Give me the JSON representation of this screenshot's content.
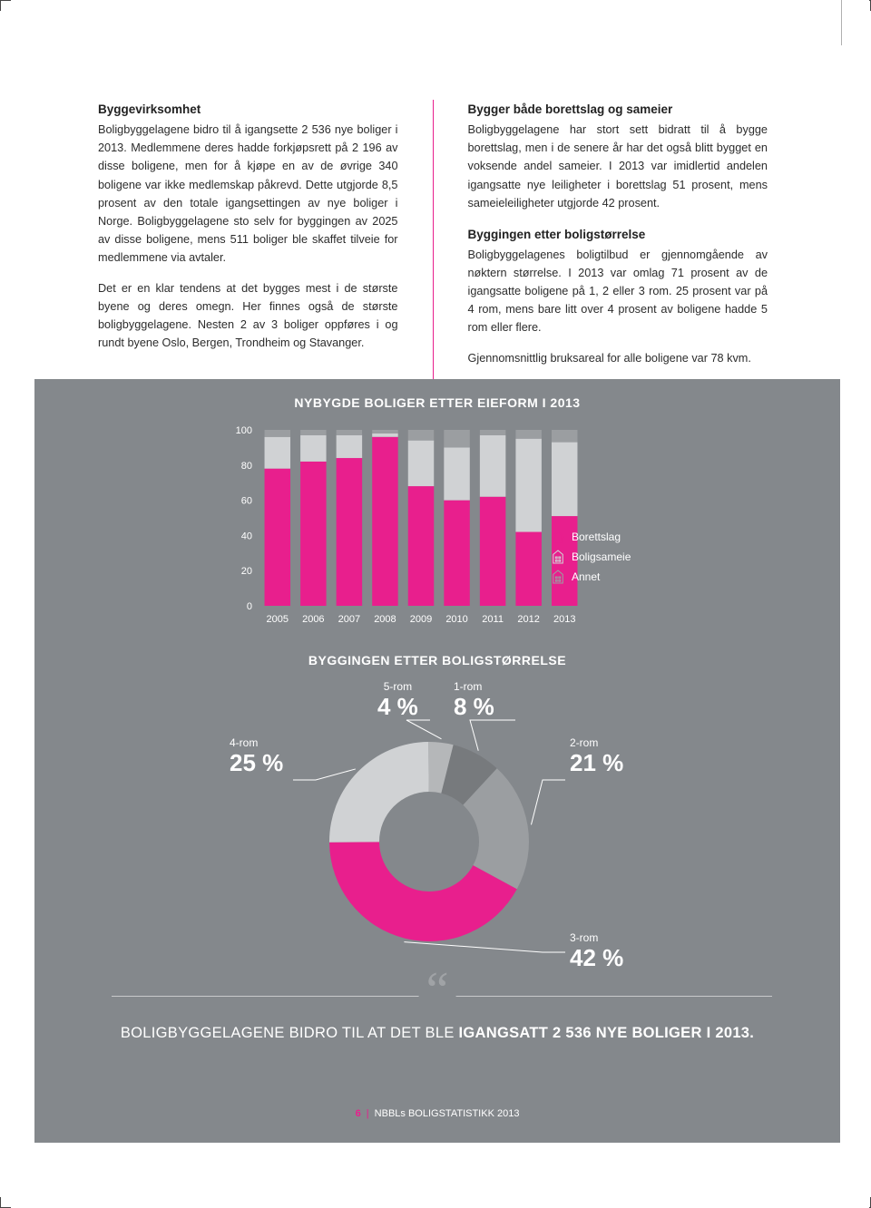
{
  "left_col": {
    "h1": "Byggevirksomhet",
    "p1": "Boligbyggelagene bidro til å igangsette 2 536 nye boliger i 2013. Medlemmene deres hadde forkjøpsrett på 2 196 av disse boligene, men for å kjøpe en av de øvrige 340 boligene var ikke medlemskap påkrevd. Dette utgjorde 8,5 prosent av den totale igangsettingen av nye boliger i Norge. Boligbyggelagene sto selv for byggingen av 2025 av disse boligene, mens 511 boliger ble skaffet tilveie for medlemmene via avtaler.",
    "p2": "Det er en klar tendens at det bygges mest i de største byene og deres omegn. Her finnes også de største boligbyggelagene. Nesten 2 av 3 boliger oppføres i og rundt byene Oslo, Bergen, Trondheim og Stavanger."
  },
  "right_col": {
    "h1": "Bygger både borettslag og sameier",
    "p1": "Boligbyggelagene har stort sett bidratt til å bygge borettslag, men i de senere år har det også blitt bygget en voksende andel sameier. I 2013 var imidlertid andelen igangsatte nye leiligheter i borettslag 51 prosent, mens sameieleiligheter utgjorde 42 prosent.",
    "h2": "Byggingen etter boligstørrelse",
    "p2": "Boligbyggelagenes boligtilbud er gjennomgående av nøktern størrelse. I 2013 var omlag 71 prosent av de igangsatte bolig­ene på 1, 2 eller 3 rom. 25 prosent var på 4 rom, mens bare litt over 4 prosent av boligene hadde 5 rom eller flere.",
    "p3": "Gjennomsnittlig bruksareal for alle boligene var 78 kvm."
  },
  "chart1": {
    "title": "NYBYGDE BOLIGER ETTER EIEFORM I 2013",
    "ylim": [
      0,
      100
    ],
    "yticks": [
      0,
      20,
      40,
      60,
      80,
      100
    ],
    "categories": [
      "2005",
      "2006",
      "2007",
      "2008",
      "2009",
      "2010",
      "2011",
      "2012",
      "2013"
    ],
    "series": {
      "borettslag": [
        78,
        82,
        84,
        96,
        68,
        60,
        62,
        42,
        51
      ],
      "boligsameie": [
        18,
        15,
        13,
        2,
        26,
        30,
        35,
        53,
        42
      ],
      "annet": [
        4,
        3,
        3,
        2,
        6,
        10,
        3,
        5,
        7
      ]
    },
    "colors": {
      "borettslag": "#e81f8d",
      "boligsameie": "#d0d2d4",
      "annet": "#9b9ea1"
    },
    "legend": [
      {
        "label": "Borettslag",
        "color": "#e81f8d"
      },
      {
        "label": "Boligsameie",
        "color": "#d0d2d4"
      },
      {
        "label": "Annet",
        "color": "#9b9ea1"
      }
    ],
    "bar_width": 0.72,
    "tick_fontsize": 11,
    "background": "#84888c"
  },
  "chart2": {
    "title": "BYGGINGEN ETTER BOLIGSTØRRELSE",
    "slices": [
      {
        "key": "1-rom",
        "label": "1-rom",
        "value": 8,
        "color": "#777a7d"
      },
      {
        "key": "2-rom",
        "label": "2-rom",
        "value": 21,
        "color": "#9b9ea1"
      },
      {
        "key": "3-rom",
        "label": "3-rom",
        "value": 42,
        "color": "#e81f8d"
      },
      {
        "key": "4-rom",
        "label": "4-rom",
        "value": 25,
        "color": "#d0d2d4"
      },
      {
        "key": "5-rom",
        "label": "5-rom",
        "value": 4,
        "color": "#b5b7b9"
      }
    ],
    "start_angle_deg": -76,
    "inner_radius": 55,
    "outer_radius": 110,
    "labels": {
      "l1": {
        "room": "5-rom",
        "pct": "4 %"
      },
      "l2": {
        "room": "1-rom",
        "pct": "8 %"
      },
      "l3": {
        "room": "2-rom",
        "pct": "21 %"
      },
      "l4": {
        "room": "3-rom",
        "pct": "42 %"
      },
      "l5": {
        "room": "4-rom",
        "pct": "25 %"
      }
    }
  },
  "quote": {
    "pre": "BOLIGBYGGELAGENE BIDRO TIL AT DET BLE ",
    "bold": "IGANGSATT 2 536 NYE BOLIGER I 2013."
  },
  "footer": {
    "page": "6",
    "title": "NBBLs BOLIGSTATISTIKK 2013"
  },
  "accent_color": "#e81f8d"
}
